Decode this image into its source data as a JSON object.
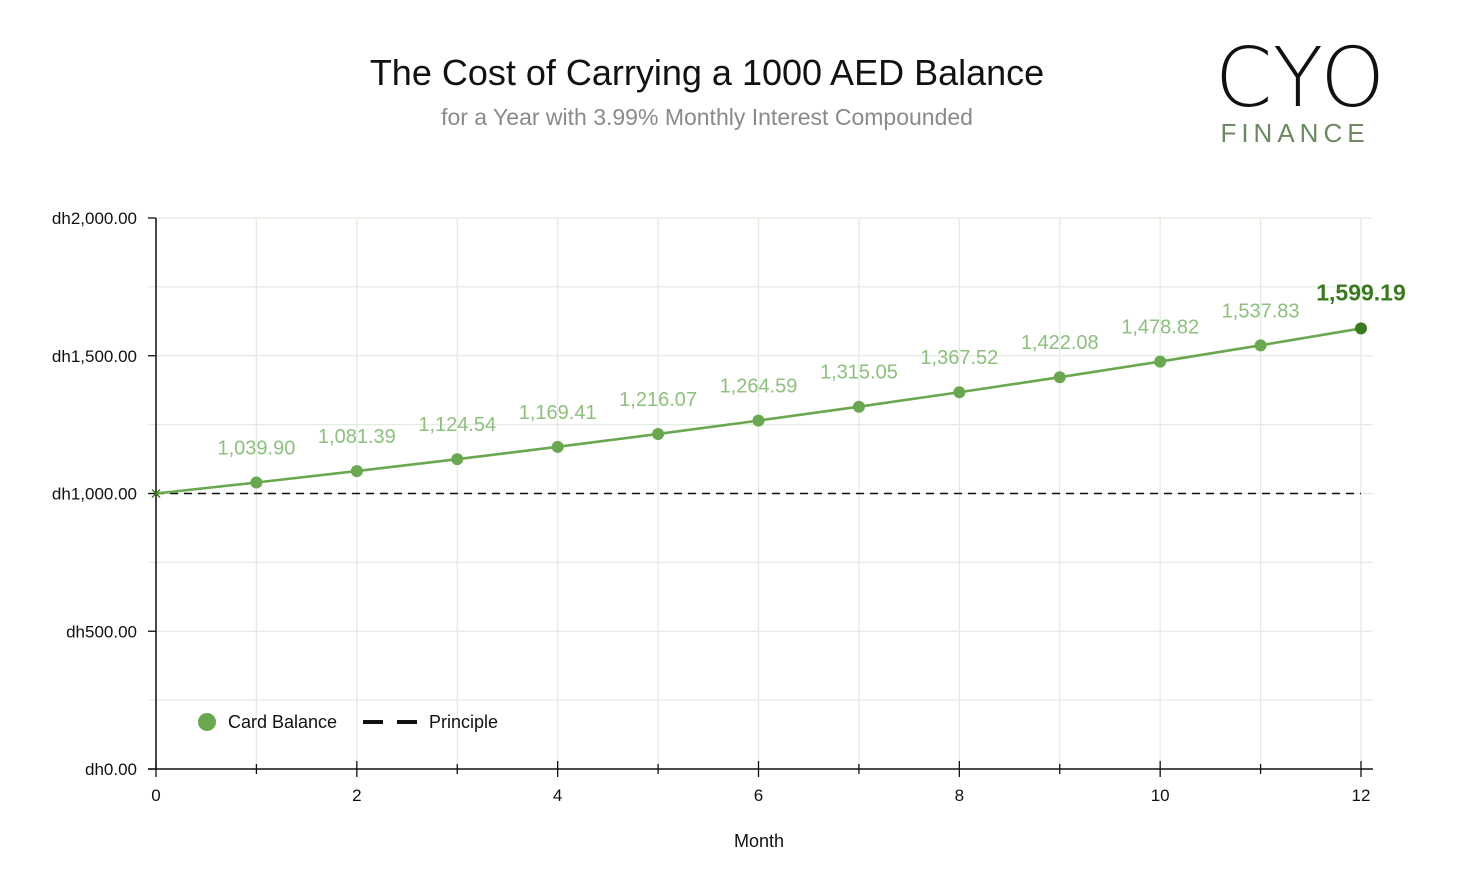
{
  "header": {
    "title": "The Cost of Carrying a 1000 AED Balance",
    "subtitle": "for a Year with 3.99% Monthly Interest Compounded"
  },
  "logo": {
    "wordmark": "CYO",
    "tagline": "FINANCE",
    "tagline_color": "#6b8a62"
  },
  "chart_data": {
    "type": "line",
    "x": [
      0,
      1,
      2,
      3,
      4,
      5,
      6,
      7,
      8,
      9,
      10,
      11,
      12
    ],
    "xlabel": "Month",
    "ylabel": "",
    "xlim": [
      0,
      12
    ],
    "ylim": [
      0,
      2000
    ],
    "x_ticks": [
      "0",
      "2",
      "4",
      "6",
      "8",
      "10",
      "12"
    ],
    "y_ticks": [
      "dh0.00",
      "dh500.00",
      "dh1,000.00",
      "dh1,500.00",
      "dh2,000.00"
    ],
    "grid": true,
    "legend_position": "bottom-left",
    "series": [
      {
        "name": "Card Balance",
        "style": "line-with-markers",
        "color": "#6aa84f",
        "values": [
          1000,
          1039.9,
          1081.39,
          1124.54,
          1169.41,
          1216.07,
          1264.59,
          1315.05,
          1367.52,
          1422.08,
          1478.82,
          1537.83,
          1599.19
        ],
        "data_labels": [
          "",
          "1,039.90",
          "1,081.39",
          "1,124.54",
          "1,169.41",
          "1,216.07",
          "1,264.59",
          "1,315.05",
          "1,367.52",
          "1,422.08",
          "1,478.82",
          "1,537.83",
          "1,599.19"
        ],
        "highlight_color": "#3a7a1e"
      },
      {
        "name": "Principle",
        "style": "dashed",
        "color": "#111111",
        "values": [
          1000,
          1000,
          1000,
          1000,
          1000,
          1000,
          1000,
          1000,
          1000,
          1000,
          1000,
          1000,
          1000
        ]
      }
    ]
  }
}
